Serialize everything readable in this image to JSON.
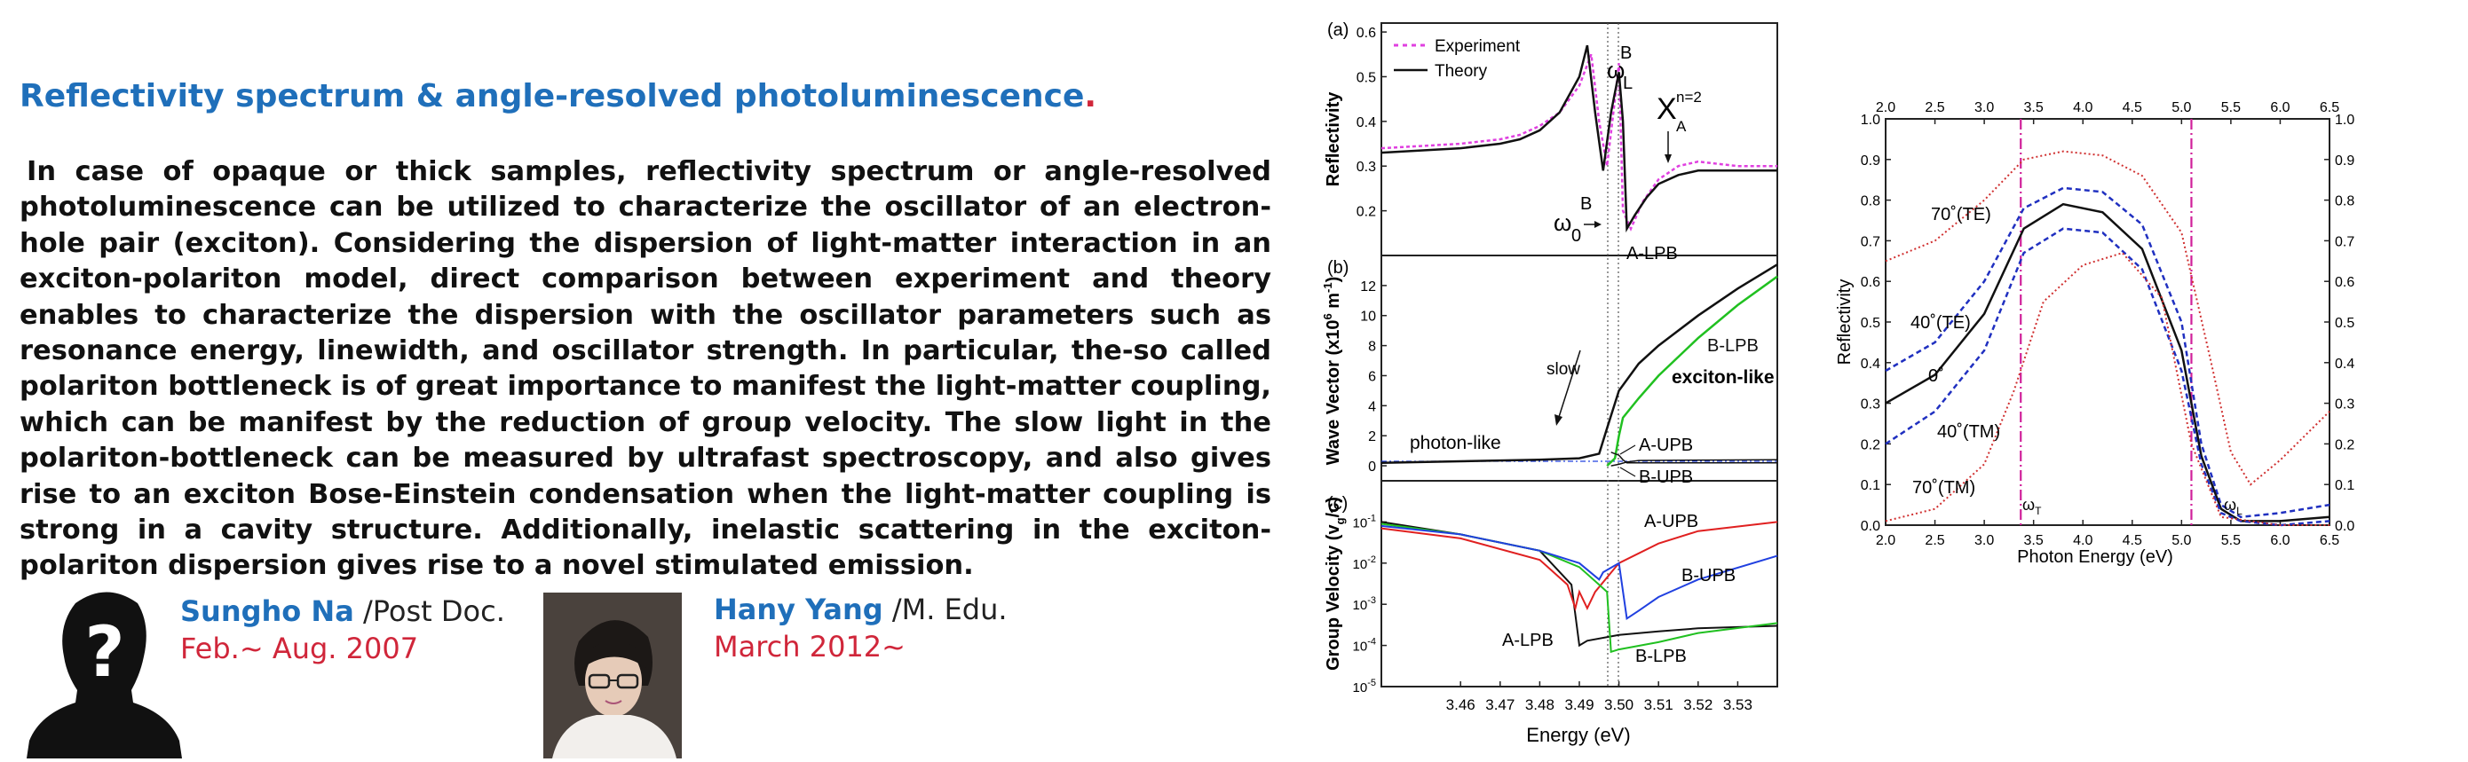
{
  "heading": {
    "text": "Reflectivity spectrum & angle-resolved photoluminescence",
    "dot": "."
  },
  "paragraph": "In case of opaque or thick samples, reflectivity spectrum or angle-resolved photoluminescence can be utilized to characterize the oscillator of an electron-hole pair (exciton). Considering the dispersion of light-matter interaction in an exciton-polariton model, direct comparison between experiment and theory enables to characterize the dispersion with the oscillator parameters such as resonance energy, linewidth, and oscillator strength. In particular, the-so called polariton bottleneck is of great importance to manifest the light-matter coupling, which can be manifest by the reduction of group velocity. The slow light in the polariton-bottleneck can be measured by ultrafast spectroscopy, and also gives rise to an exciton Bose-Einstein condensation when the light-matter coupling is strong in a cavity structure. Additionally, inelastic scattering in the exciton-polariton dispersion gives rise to a novel stimulated emission.",
  "people": [
    {
      "name": "Sungho Na",
      "role": " /Post Doc.",
      "period": "Feb.~ Aug. 2007",
      "avatar": "unknown-silhouette"
    },
    {
      "name": "Hany Yang",
      "role": " /M. Edu.",
      "period": "March 2012~",
      "avatar": "photo"
    }
  ],
  "colors": {
    "heading": "#1f6fba",
    "period": "#d0263a",
    "experiment": "#e040e0",
    "red": "#e02020",
    "green": "#20c020",
    "blue": "#2040e0",
    "magenta": "#d0209a"
  },
  "chart_data": [
    {
      "type": "line",
      "panel": "(a)",
      "title": "",
      "xlabel": "Energy (eV)",
      "ylabel": "Reflectivity",
      "xlim": [
        3.44,
        3.54
      ],
      "ylim": [
        0.1,
        0.62
      ],
      "yticks": [
        "0.2",
        "0.3",
        "0.4",
        "0.5",
        "0.6"
      ],
      "legend": [
        "Experiment",
        "Theory"
      ],
      "annotations": {
        "omega_label": "ω",
        "b_sup": "B",
        "zero_sub": "0",
        "l_sub": "L",
        "x_label": "X",
        "a_sub": "A",
        "n_sup": "n=2"
      },
      "series": [
        {
          "name": "Experiment",
          "x": [
            3.44,
            3.45,
            3.46,
            3.47,
            3.475,
            3.48,
            3.485,
            3.49,
            3.493,
            3.495,
            3.497,
            3.499,
            3.5,
            3.501,
            3.503,
            3.506,
            3.51,
            3.515,
            3.52,
            3.53,
            3.54
          ],
          "y": [
            0.34,
            0.345,
            0.35,
            0.36,
            0.37,
            0.39,
            0.42,
            0.48,
            0.55,
            0.4,
            0.3,
            0.45,
            0.53,
            0.2,
            0.16,
            0.22,
            0.27,
            0.3,
            0.31,
            0.3,
            0.3
          ]
        },
        {
          "name": "Theory",
          "x": [
            3.44,
            3.45,
            3.46,
            3.47,
            3.475,
            3.48,
            3.485,
            3.49,
            3.492,
            3.494,
            3.496,
            3.498,
            3.5,
            3.501,
            3.502,
            3.504,
            3.507,
            3.51,
            3.515,
            3.52,
            3.53,
            3.54
          ],
          "y": [
            0.33,
            0.335,
            0.34,
            0.35,
            0.36,
            0.38,
            0.42,
            0.5,
            0.57,
            0.42,
            0.29,
            0.42,
            0.51,
            0.4,
            0.16,
            0.19,
            0.23,
            0.26,
            0.28,
            0.29,
            0.29,
            0.29
          ]
        }
      ]
    },
    {
      "type": "line",
      "panel": "(b)",
      "xlabel": "Energy (eV)",
      "ylabel": "Wave Vector (x10^6 m^-1)",
      "ylabel_parts": {
        "main": "Wave Vector (x10",
        "exp1": "6",
        "mid": " m",
        "exp2": "-1",
        "end": ")"
      },
      "xlim": [
        3.44,
        3.54
      ],
      "ylim": [
        -1,
        14
      ],
      "yticks": [
        "0",
        "2",
        "4",
        "6",
        "8",
        "10",
        "12"
      ],
      "annotations": {
        "slow": "slow",
        "photon_like": "photon-like",
        "exciton_like": "exciton-like",
        "a_lpb": "A-LPB",
        "b_lpb": "B-LPB",
        "a_upb": "A-UPB",
        "b_upb": "B-UPB"
      },
      "series": [
        {
          "name": "A-LPB",
          "x": [
            3.44,
            3.46,
            3.48,
            3.49,
            3.495,
            3.497,
            3.5,
            3.505,
            3.51,
            3.52,
            3.53,
            3.54
          ],
          "y": [
            0.2,
            0.3,
            0.4,
            0.5,
            0.8,
            2.5,
            5,
            6.8,
            8,
            10,
            11.8,
            13.4
          ]
        },
        {
          "name": "B-LPB",
          "x": [
            3.497,
            3.499,
            3.5,
            3.501,
            3.505,
            3.51,
            3.52,
            3.53,
            3.54
          ],
          "y": [
            0,
            0.5,
            2,
            3.2,
            4.5,
            6,
            8.5,
            10.7,
            12.6
          ]
        },
        {
          "name": "A-UPB",
          "x": [
            3.498,
            3.5,
            3.501,
            3.502,
            3.51,
            3.54
          ],
          "y": [
            0.9,
            0.7,
            0.4,
            0.2,
            0.2,
            0.2
          ]
        },
        {
          "name": "B-UPB",
          "x": [
            3.498,
            3.5,
            3.502,
            3.505,
            3.54
          ],
          "y": [
            0,
            0.1,
            0.25,
            0.35,
            0.4
          ]
        }
      ]
    },
    {
      "type": "line",
      "panel": "(c)",
      "xlabel": "Energy (eV)",
      "ylabel": "Group Velocity (v_g/c)",
      "ylabel_parts": {
        "main": "Group Velocity (v",
        "sub": "g",
        "end": "/c)"
      },
      "xlim": [
        3.44,
        3.54
      ],
      "ylim_log10": [
        -5,
        0
      ],
      "yticks": [
        "10^-1",
        "10^-2",
        "10^-3",
        "10^-4",
        "10^-5"
      ],
      "xticks": [
        "3.46",
        "3.47",
        "3.48",
        "3.49",
        "3.50",
        "3.51",
        "3.52",
        "3.53"
      ],
      "annotations": {
        "a_upb": "A-UPB",
        "b_upb": "B-UPB",
        "a_lpb": "A-LPB",
        "b_lpb": "B-LPB"
      },
      "series": [
        {
          "name": "black",
          "x": [
            3.44,
            3.46,
            3.48,
            3.488,
            3.49,
            3.492,
            3.5,
            3.51,
            3.52,
            3.54
          ],
          "y": [
            0.1,
            0.05,
            0.02,
            0.003,
            0.0001,
            0.00013,
            0.00018,
            0.00022,
            0.00026,
            0.0003
          ]
        },
        {
          "name": "red",
          "x": [
            3.44,
            3.46,
            3.48,
            3.487,
            3.489,
            3.49,
            3.492,
            3.494,
            3.5,
            3.51,
            3.52,
            3.54
          ],
          "y": [
            0.07,
            0.04,
            0.012,
            0.003,
            0.0008,
            0.002,
            0.0008,
            0.002,
            0.01,
            0.03,
            0.06,
            0.1
          ]
        },
        {
          "name": "green",
          "x": [
            3.44,
            3.46,
            3.48,
            3.49,
            3.495,
            3.497,
            3.498,
            3.5,
            3.51,
            3.52,
            3.54
          ],
          "y": [
            0.09,
            0.05,
            0.02,
            0.008,
            0.003,
            0.002,
            7e-05,
            8e-05,
            0.00012,
            0.0002,
            0.00035
          ]
        },
        {
          "name": "blue",
          "x": [
            3.44,
            3.46,
            3.48,
            3.49,
            3.495,
            3.496,
            3.5,
            3.502,
            3.505,
            3.51,
            3.52,
            3.54
          ],
          "y": [
            0.08,
            0.05,
            0.02,
            0.01,
            0.004,
            0.006,
            0.01,
            0.00045,
            0.0007,
            0.0015,
            0.004,
            0.015
          ]
        }
      ]
    },
    {
      "type": "line",
      "panel": "right",
      "xlabel": "Photon Energy (eV)",
      "ylabel": "Reflectivity",
      "xlim": [
        2.0,
        6.5
      ],
      "ylim": [
        0.0,
        1.0
      ],
      "xticks": [
        "2.0",
        "2.5",
        "3.0",
        "3.5",
        "4.0",
        "4.5",
        "5.0",
        "5.5",
        "6.0",
        "6.5"
      ],
      "yticks": [
        "0.0",
        "0.1",
        "0.2",
        "0.3",
        "0.4",
        "0.5",
        "0.6",
        "0.7",
        "0.8",
        "0.9",
        "1.0"
      ],
      "vlines_x": [
        3.37,
        5.1
      ],
      "annotations": {
        "l70te": "70˚(TE)",
        "l40te": "40˚(TE)",
        "l0": "0˚",
        "l40tm": "40˚(TM)",
        "l70tm": "70˚(TM)",
        "wt": "ω",
        "wt_sub": "T",
        "wl": "ω",
        "wl_sub": "L"
      },
      "series": [
        {
          "name": "70˚(TE)",
          "x": [
            2.0,
            2.5,
            3.0,
            3.4,
            3.8,
            4.2,
            4.6,
            5.0,
            5.3,
            5.5,
            5.7,
            6.0,
            6.5
          ],
          "y": [
            0.65,
            0.7,
            0.8,
            0.9,
            0.92,
            0.91,
            0.86,
            0.72,
            0.4,
            0.18,
            0.1,
            0.16,
            0.28
          ]
        },
        {
          "name": "40˚(TE)",
          "x": [
            2.0,
            2.5,
            3.0,
            3.4,
            3.8,
            4.2,
            4.6,
            5.0,
            5.2,
            5.4,
            5.6,
            6.0,
            6.5
          ],
          "y": [
            0.38,
            0.45,
            0.6,
            0.78,
            0.83,
            0.82,
            0.74,
            0.5,
            0.2,
            0.05,
            0.02,
            0.03,
            0.05
          ]
        },
        {
          "name": "0˚",
          "x": [
            2.0,
            2.5,
            3.0,
            3.4,
            3.8,
            4.2,
            4.6,
            5.0,
            5.2,
            5.4,
            5.6,
            6.0,
            6.5
          ],
          "y": [
            0.3,
            0.37,
            0.52,
            0.73,
            0.79,
            0.77,
            0.68,
            0.43,
            0.17,
            0.04,
            0.01,
            0.01,
            0.02
          ]
        },
        {
          "name": "40˚(TM)",
          "x": [
            2.0,
            2.5,
            3.0,
            3.4,
            3.8,
            4.2,
            4.6,
            5.0,
            5.2,
            5.4,
            5.6,
            6.0,
            6.5
          ],
          "y": [
            0.2,
            0.28,
            0.43,
            0.67,
            0.73,
            0.72,
            0.63,
            0.38,
            0.15,
            0.03,
            0.01,
            0.0,
            0.01
          ]
        },
        {
          "name": "70˚(TM)",
          "x": [
            2.0,
            2.5,
            3.0,
            3.3,
            3.6,
            4.0,
            4.4,
            4.8,
            5.1,
            5.4,
            5.7,
            6.0,
            6.5
          ],
          "y": [
            0.01,
            0.04,
            0.15,
            0.33,
            0.55,
            0.64,
            0.67,
            0.56,
            0.2,
            0.02,
            0.01,
            0.0,
            0.0
          ]
        }
      ]
    }
  ]
}
